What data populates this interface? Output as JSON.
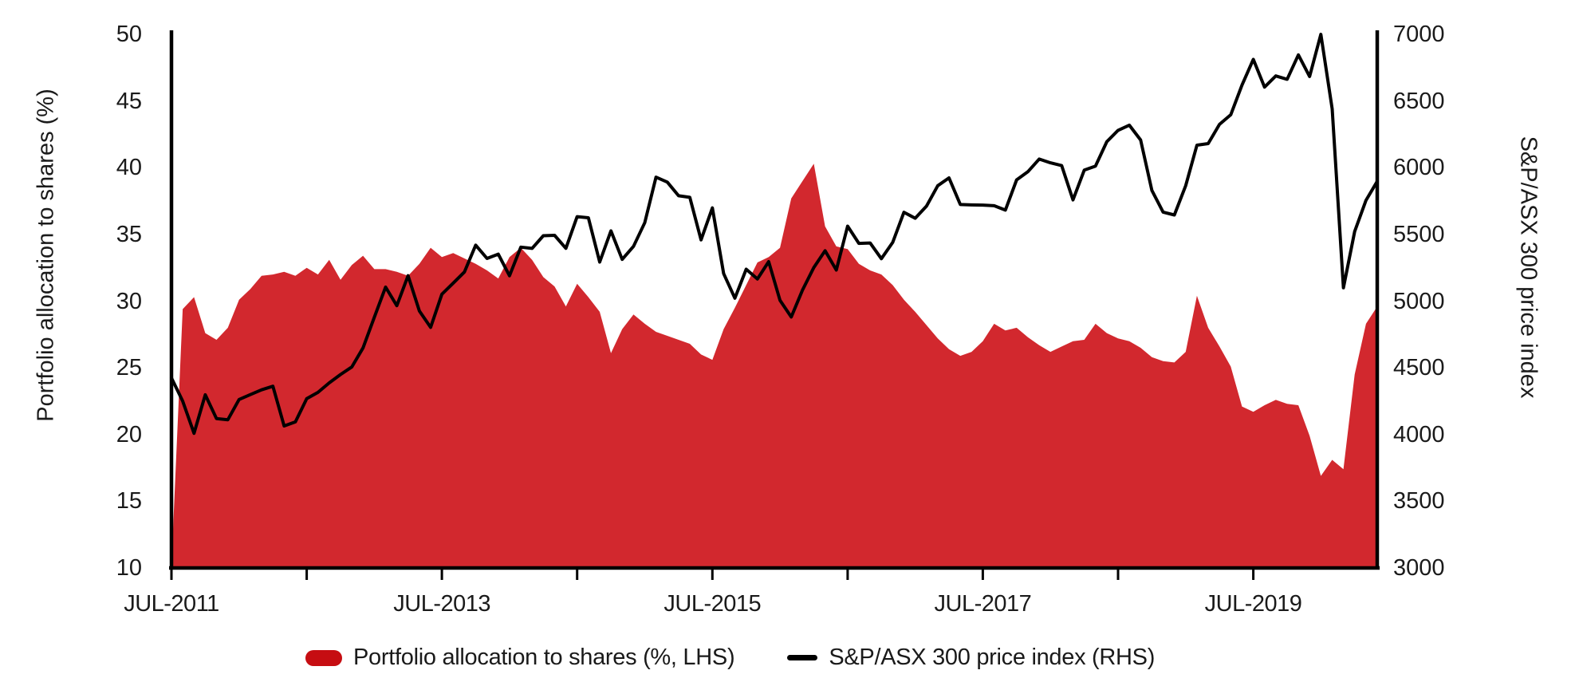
{
  "figure": {
    "background": "#ffffff"
  },
  "colors": {
    "area_fill": "#d2282e",
    "legend_area_swatch": "#c60d12",
    "line_stroke": "#000000",
    "axis_stroke": "#000000",
    "text": "#1a1a1a"
  },
  "legend": {
    "area_label": "Portfolio allocation to shares (%, LHS)",
    "line_label": "S&P/ASX 300 price index (RHS)"
  },
  "chart_data": {
    "type": "combo",
    "subtype": [
      "area",
      "line"
    ],
    "grid": false,
    "legend_position": "bottom",
    "x": {
      "start": "JUL-2011",
      "end": "JUN-2020",
      "frequency": "monthly",
      "tick_labels": [
        "JUL-2011",
        "JUL-2013",
        "JUL-2015",
        "JUL-2017",
        "JUL-2019"
      ],
      "tick_year_offsets": [
        0,
        2,
        4,
        6,
        8
      ],
      "minor_year_tick_count": 9
    },
    "left_axis": {
      "label": "Portfolio allocation to shares (%)",
      "min": 10,
      "max": 50,
      "ticks": [
        50,
        45,
        40,
        35,
        30,
        25,
        20,
        15,
        10
      ]
    },
    "right_axis": {
      "label": "S&P/ASX 300 price index",
      "min": 3000,
      "max": 7000,
      "ticks": [
        7000,
        6500,
        6000,
        5500,
        5000,
        4500,
        4000,
        3500,
        3000
      ]
    },
    "series": [
      {
        "name": "Portfolio allocation to shares (%, LHS)",
        "type": "area",
        "axis": "left",
        "color": "#d2282e",
        "values": [
          10.2,
          29.4,
          30.3,
          27.6,
          27.1,
          28.0,
          30.1,
          30.9,
          31.9,
          32.0,
          32.2,
          31.9,
          32.5,
          32.0,
          33.1,
          31.6,
          32.7,
          33.4,
          32.4,
          32.4,
          32.2,
          31.9,
          32.8,
          34.0,
          33.3,
          33.6,
          33.2,
          32.8,
          32.3,
          31.7,
          33.3,
          34.0,
          33.1,
          31.8,
          31.1,
          29.6,
          31.3,
          30.3,
          29.2,
          26.1,
          27.9,
          29.0,
          28.3,
          27.7,
          27.4,
          27.1,
          26.8,
          26.0,
          25.6,
          27.9,
          29.5,
          31.2,
          32.9,
          33.3,
          34.0,
          37.7,
          39.0,
          40.3,
          35.6,
          34.1,
          33.9,
          32.8,
          32.3,
          32.0,
          31.2,
          30.1,
          29.2,
          28.2,
          27.2,
          26.4,
          25.9,
          26.2,
          27.0,
          28.3,
          27.8,
          28.0,
          27.3,
          26.7,
          26.2,
          26.6,
          27.0,
          27.1,
          28.3,
          27.6,
          27.2,
          27.0,
          26.5,
          25.8,
          25.5,
          25.4,
          26.2,
          30.4,
          28.0,
          26.6,
          25.1,
          22.1,
          21.7,
          22.2,
          22.6,
          22.3,
          22.2,
          19.9,
          16.9,
          18.1,
          17.4,
          24.5,
          28.3,
          29.6
        ]
      },
      {
        "name": "S&P/ASX 300 price index (RHS)",
        "type": "line",
        "axis": "right",
        "color": "#000000",
        "values": [
          4424,
          4250,
          4009,
          4298,
          4119,
          4111,
          4263,
          4299,
          4335,
          4362,
          4064,
          4095,
          4269,
          4316,
          4387,
          4450,
          4506,
          4649,
          4879,
          5105,
          4966,
          5191,
          4926,
          4803,
          5052,
          5135,
          5219,
          5420,
          5320,
          5352,
          5190,
          5405,
          5395,
          5490,
          5493,
          5396,
          5633,
          5625,
          5293,
          5527,
          5313,
          5411,
          5588,
          5929,
          5892,
          5790,
          5778,
          5459,
          5699,
          5207,
          5022,
          5239,
          5166,
          5296,
          5006,
          4881,
          5083,
          5252,
          5378,
          5233,
          5562,
          5433,
          5436,
          5318,
          5440,
          5666,
          5621,
          5712,
          5865,
          5924,
          5724,
          5721,
          5720,
          5715,
          5682,
          5909,
          5970,
          6065,
          6037,
          6016,
          5759,
          5982,
          6012,
          6195,
          6280,
          6319,
          6208,
          5830,
          5667,
          5646,
          5865,
          6169,
          6181,
          6325,
          6397,
          6619,
          6812,
          6604,
          6688,
          6663,
          6846,
          6684,
          7000,
          6441,
          5100,
          5522,
          5756,
          5898
        ]
      }
    ]
  }
}
